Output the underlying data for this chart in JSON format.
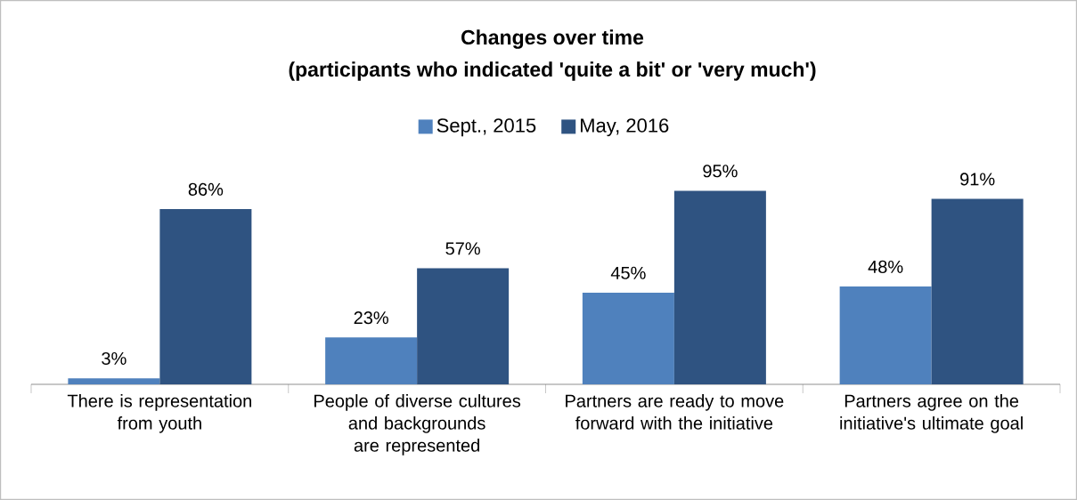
{
  "chart_data": {
    "type": "bar",
    "title": "Changes over time",
    "subtitle": "(participants who indicated 'quite a bit' or 'very much')",
    "categories": [
      "There is representation from youth",
      "People of diverse cultures and backgrounds are represented",
      "Partners are ready to move forward with the initiative",
      "Partners agree on the initiative's ultimate goal"
    ],
    "series": [
      {
        "name": "Sept., 2015",
        "color": "#4f81bd",
        "values": [
          3,
          23,
          45,
          48
        ],
        "value_labels": [
          "3%",
          "23%",
          "45%",
          "48%"
        ]
      },
      {
        "name": "May, 2016",
        "color": "#2f5381",
        "values": [
          86,
          57,
          95,
          91
        ],
        "value_labels": [
          "86%",
          "57%",
          "95%",
          "91%"
        ]
      }
    ],
    "legend": "top"
  }
}
